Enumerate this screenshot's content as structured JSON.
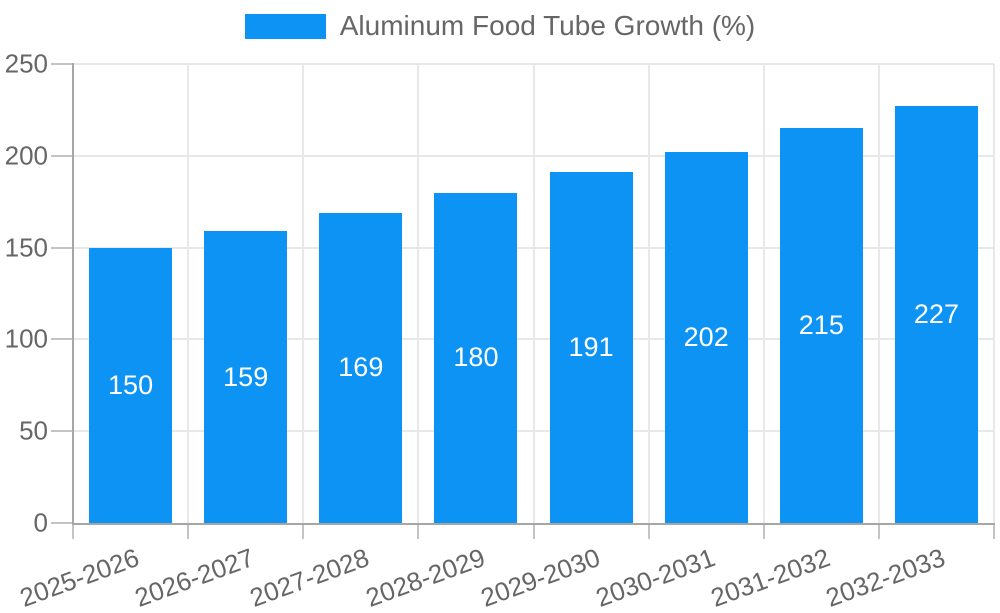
{
  "chart_data": {
    "type": "bar",
    "title": "",
    "legend": {
      "label": "Aluminum Food Tube Growth (%)",
      "position": "top"
    },
    "categories": [
      "2025-2026",
      "2026-2027",
      "2027-2028",
      "2028-2029",
      "2029-2030",
      "2030-2031",
      "2031-2032",
      "2032-2033"
    ],
    "series": [
      {
        "name": "Aluminum Food Tube Growth (%)",
        "values": [
          150,
          159,
          169,
          180,
          191,
          202,
          215,
          227
        ]
      }
    ],
    "value_labels_shown": true,
    "xlabel": "",
    "ylabel": "",
    "ylim": [
      0,
      250
    ],
    "yticks": [
      0,
      50,
      100,
      150,
      200,
      250
    ],
    "grid": true,
    "x_label_rotation_deg": -20,
    "colors": {
      "bar": "#0d93f4",
      "value_label": "#ffffff",
      "axis_text": "#666666",
      "legend_text": "#666666",
      "gridline": "#e8e8e8",
      "axis_line": "#a6a6a6",
      "tick_mark": "#c4c4c4",
      "background": "#ffffff"
    }
  }
}
